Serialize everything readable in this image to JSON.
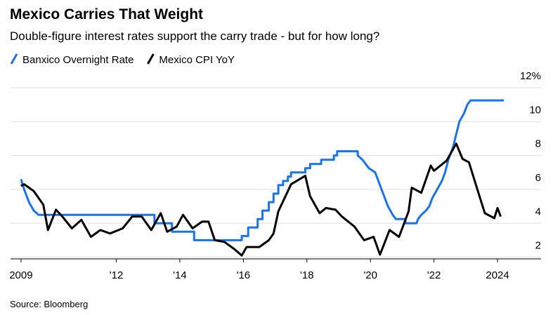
{
  "chart_data": {
    "type": "line",
    "title": "Mexico Carries That Weight",
    "subtitle": "Double-figure interest rates support the carry trade - but for how long?",
    "source": "Source: Bloomberg",
    "xlim": [
      2008.67,
      2025.37
    ],
    "xticks": [
      {
        "value": 2009,
        "label": "2009"
      },
      {
        "value": 2012,
        "label": "'12"
      },
      {
        "value": 2014,
        "label": "'14"
      },
      {
        "value": 2016,
        "label": "'16"
      },
      {
        "value": 2018,
        "label": "'18"
      },
      {
        "value": 2020,
        "label": "'20"
      },
      {
        "value": 2022,
        "label": "'22"
      },
      {
        "value": 2024,
        "label": "2024"
      }
    ],
    "ylim": [
      1.9,
      12
    ],
    "yticks": [
      2,
      4,
      6,
      8,
      10,
      {
        "value": 12,
        "label": "12%"
      }
    ],
    "grid": true,
    "series": [
      {
        "name": "Banxico Overnight Rate",
        "color": "#1a73e8",
        "x": [
          2009.0,
          2009.1,
          2009.25,
          2009.4,
          2009.55,
          2013.2,
          2013.2,
          2013.75,
          2013.75,
          2014.45,
          2014.45,
          2015.95,
          2015.95,
          2016.15,
          2016.15,
          2016.45,
          2016.45,
          2016.6,
          2016.6,
          2016.8,
          2016.8,
          2016.95,
          2016.95,
          2017.1,
          2017.1,
          2017.25,
          2017.25,
          2017.4,
          2017.4,
          2017.5,
          2017.5,
          2017.95,
          2017.95,
          2018.1,
          2018.1,
          2018.45,
          2018.45,
          2018.85,
          2018.85,
          2018.95,
          2018.95,
          2019.6,
          2019.6,
          2019.75,
          2019.85,
          2019.95,
          2020.15,
          2020.25,
          2020.35,
          2020.45,
          2020.55,
          2020.7,
          2020.8,
          2021.1,
          2021.1,
          2021.45,
          2021.5,
          2021.6,
          2021.75,
          2021.85,
          2021.95,
          2022.1,
          2022.25,
          2022.35,
          2022.45,
          2022.6,
          2022.7,
          2022.8,
          2022.95,
          2023.05,
          2023.15,
          2024.2
        ],
        "values": [
          6.6,
          6.0,
          5.25,
          4.75,
          4.5,
          4.5,
          4.0,
          4.0,
          3.5,
          3.5,
          3.0,
          3.0,
          3.25,
          3.25,
          3.75,
          3.75,
          4.25,
          4.25,
          4.75,
          4.75,
          5.25,
          5.25,
          5.75,
          5.75,
          6.25,
          6.25,
          6.5,
          6.5,
          6.75,
          6.75,
          7.0,
          7.0,
          7.25,
          7.25,
          7.5,
          7.5,
          7.75,
          7.75,
          8.0,
          8.0,
          8.25,
          8.25,
          8.0,
          7.75,
          7.5,
          7.25,
          7.0,
          6.5,
          6.0,
          5.5,
          5.0,
          4.5,
          4.25,
          4.25,
          4.0,
          4.0,
          4.25,
          4.5,
          4.75,
          5.0,
          5.5,
          6.0,
          6.5,
          7.0,
          7.75,
          8.5,
          9.25,
          10.0,
          10.5,
          11.0,
          11.25,
          11.25
        ]
      },
      {
        "name": "Mexico CPI YoY",
        "color": "#000000",
        "x": [
          2009.0,
          2009.1,
          2009.4,
          2009.7,
          2009.85,
          2010.1,
          2010.3,
          2010.6,
          2010.9,
          2011.2,
          2011.5,
          2011.8,
          2012.2,
          2012.5,
          2012.8,
          2013.1,
          2013.4,
          2013.6,
          2013.9,
          2014.1,
          2014.4,
          2014.7,
          2014.9,
          2015.1,
          2015.4,
          2015.7,
          2015.95,
          2016.1,
          2016.5,
          2016.8,
          2016.95,
          2017.1,
          2017.5,
          2017.95,
          2018.1,
          2018.4,
          2018.6,
          2018.9,
          2019.1,
          2019.5,
          2019.8,
          2020.1,
          2020.3,
          2020.6,
          2020.9,
          2021.2,
          2021.3,
          2021.6,
          2021.9,
          2022.0,
          2022.4,
          2022.7,
          2022.9,
          2023.1,
          2023.4,
          2023.6,
          2023.9,
          2024.0,
          2024.1
        ],
        "values": [
          6.2,
          6.3,
          5.9,
          5.1,
          3.6,
          4.8,
          4.4,
          3.7,
          4.2,
          3.2,
          3.6,
          3.4,
          3.7,
          4.4,
          4.4,
          3.6,
          4.6,
          3.5,
          3.8,
          4.5,
          3.7,
          4.1,
          4.1,
          3.0,
          2.9,
          2.5,
          2.1,
          2.6,
          2.6,
          3.0,
          3.4,
          4.7,
          6.3,
          6.8,
          5.6,
          4.6,
          4.9,
          4.8,
          4.4,
          3.8,
          3.0,
          3.2,
          2.15,
          3.6,
          3.2,
          4.7,
          6.1,
          5.8,
          7.4,
          7.1,
          7.7,
          8.7,
          7.8,
          7.6,
          5.8,
          4.6,
          4.3,
          4.9,
          4.4
        ]
      }
    ]
  }
}
